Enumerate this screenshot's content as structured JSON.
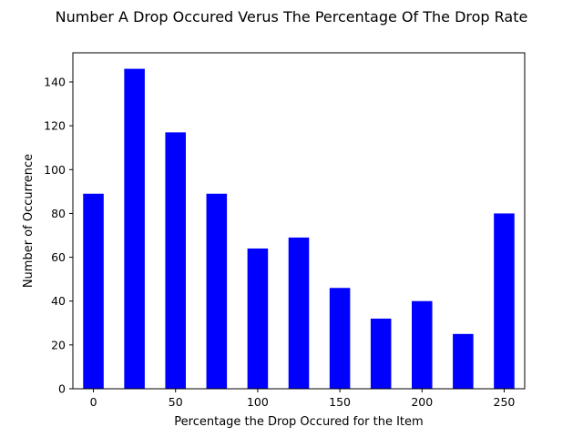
{
  "chart_data": {
    "type": "bar",
    "title": "Number A Drop Occured Verus The Percentage Of The Drop Rate",
    "xlabel": "Percentage the Drop Occured for the Item",
    "ylabel": "Number of Occurrence",
    "x": [
      0,
      25,
      50,
      75,
      100,
      125,
      150,
      175,
      200,
      225,
      250
    ],
    "values": [
      89,
      146,
      117,
      89,
      64,
      69,
      46,
      32,
      40,
      25,
      80
    ],
    "bar_width": 12.5,
    "xlim": [
      -12.5,
      262.5
    ],
    "ylim": [
      0,
      153.3
    ],
    "xticks": [
      0,
      50,
      100,
      150,
      200,
      250
    ],
    "yticks": [
      0,
      20,
      40,
      60,
      80,
      100,
      120,
      140
    ],
    "bar_color": "#0000ff",
    "grid": false
  }
}
